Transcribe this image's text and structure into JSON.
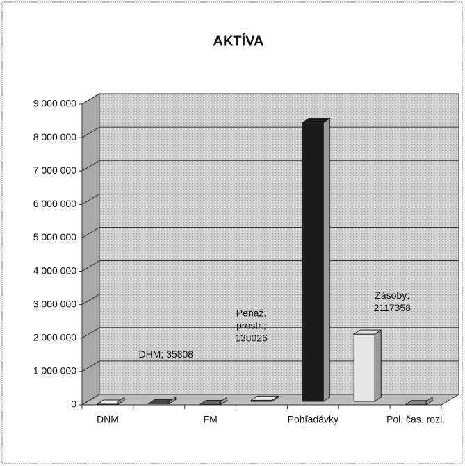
{
  "chart_data": {
    "type": "bar3d",
    "title": "AKTÍVA",
    "categories": [
      "DNM",
      null,
      "FM",
      null,
      "Pohľadávky",
      null,
      "Pol. čas. rozl."
    ],
    "values": [
      20000,
      35808,
      10000,
      138026,
      8450000,
      2117358,
      5000
    ],
    "value_labels": [
      null,
      "DHM; 35808",
      null,
      "Peňaž. prostr.; 138026",
      null,
      "Zásoby; 2117358",
      null
    ],
    "colors": [
      "#efefef",
      "#444444",
      "#666666",
      "#efefef",
      "#1c1c1c",
      "#e4e4e4",
      "#888888"
    ],
    "ylim": [
      0,
      9000000
    ],
    "yticks": [
      0,
      {
        "value": 1000000,
        "label": "1 000 000"
      },
      {
        "value": 2000000,
        "label": "2 000 000"
      },
      {
        "value": 3000000,
        "label": "3 000 000"
      },
      {
        "value": 4000000,
        "label": "4 000 000"
      },
      {
        "value": 5000000,
        "label": "5 000 000"
      },
      {
        "value": 6000000,
        "label": "6 000 000"
      },
      {
        "value": 7000000,
        "label": "7 000 000"
      },
      {
        "value": 8000000,
        "label": "8 000 000"
      },
      {
        "value": 9000000,
        "label": "9 000 000"
      }
    ],
    "grid": true
  }
}
